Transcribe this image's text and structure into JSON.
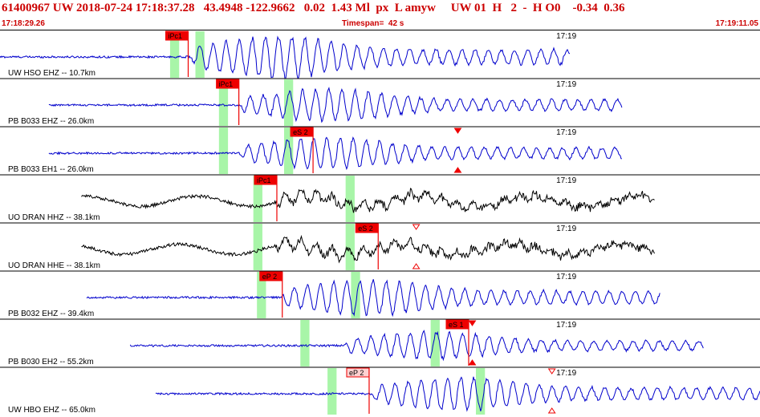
{
  "header": {
    "event_line": "61400967 UW 2018-07-24 17:18:37.28   43.4948 -122.9662   0.02  1.43 Ml  px  L amyw     UW 01  H   2  -  H O0    -0.34  0.36",
    "start_time": "17:18:29.26",
    "timespan": "Timespan=  42 s",
    "end_time": "17:19:11.05"
  },
  "colors": {
    "header_text": "#cc0000",
    "trace_blue": "#0000cc",
    "trace_black": "#000000",
    "pick_box": "#ee0000",
    "pick_box_outline": "#ee0000",
    "pick_box_weak": "#ffd0d0",
    "window_green": "#a8f5a8",
    "separator": "#000000"
  },
  "time_axis": {
    "start_seconds": 0,
    "end_seconds": 42,
    "tick_label": "17:19",
    "tick_seconds": 30.74
  },
  "channels": [
    {
      "label": "UW HSO EHZ -- 10.7km",
      "color": "blue",
      "start": 0.0,
      "end": 31.5,
      "onset": 10.5,
      "amp": 1.0,
      "picks": [
        {
          "label": "iPc1",
          "time": 10.4,
          "weak": false
        }
      ],
      "green": [
        [
          9.4,
          9.9
        ],
        [
          10.8,
          11.3
        ]
      ],
      "triangles": []
    },
    {
      "label": "PB B033 EHZ -- 26.0km",
      "color": "blue",
      "start": 2.7,
      "end": 34.4,
      "onset": 13.2,
      "amp": 0.75,
      "picks": [
        {
          "label": "iPc1",
          "time": 13.2,
          "weak": false
        }
      ],
      "green": [
        [
          12.1,
          12.6
        ],
        [
          15.7,
          16.2
        ]
      ],
      "triangles": []
    },
    {
      "label": "PB B033 EH1 -- 26.0km",
      "color": "blue",
      "start": 2.7,
      "end": 34.4,
      "onset": 13.2,
      "amp": 0.75,
      "picks": [
        {
          "label": "eS 2",
          "time": 17.3,
          "weak": false
        }
      ],
      "green": [
        [
          12.1,
          12.6
        ],
        [
          15.7,
          16.2
        ]
      ],
      "triangles": [
        {
          "time": 25.3,
          "pos": "top",
          "open": false
        },
        {
          "time": 25.3,
          "pos": "bottom",
          "open": false
        }
      ]
    },
    {
      "label": "UO DRAN HHZ -- 38.1km",
      "color": "black",
      "start": 4.5,
      "end": 36.2,
      "onset": 15.3,
      "amp": 0.7,
      "picks": [
        {
          "label": "iPc1",
          "time": 15.3,
          "weak": false
        }
      ],
      "green": [
        [
          14.0,
          14.5
        ],
        [
          19.1,
          19.6
        ]
      ],
      "triangles": []
    },
    {
      "label": "UO DRAN HHE -- 38.1km",
      "color": "black",
      "start": 4.5,
      "end": 36.2,
      "onset": 15.3,
      "amp": 0.7,
      "picks": [
        {
          "label": "eS 2",
          "time": 20.9,
          "weak": false
        }
      ],
      "green": [
        [
          14.0,
          14.5
        ],
        [
          19.1,
          19.6
        ]
      ],
      "triangles": [
        {
          "time": 23.0,
          "pos": "top",
          "open": true
        },
        {
          "time": 23.0,
          "pos": "bottom",
          "open": true
        }
      ]
    },
    {
      "label": "PB B032 EHZ -- 39.4km",
      "color": "blue",
      "start": 4.8,
      "end": 36.5,
      "onset": 15.5,
      "amp": 0.85,
      "picks": [
        {
          "label": "eP 2",
          "time": 15.6,
          "weak": false
        }
      ],
      "green": [
        [
          14.2,
          14.7
        ],
        [
          19.4,
          19.9
        ]
      ],
      "triangles": []
    },
    {
      "label": "PB B030 EH2 -- 55.2km",
      "color": "blue",
      "start": 7.2,
      "end": 38.9,
      "onset": 19.0,
      "amp": 0.65,
      "picks": [
        {
          "label": "eS 1",
          "time": 25.9,
          "weak": false
        }
      ],
      "green": [
        [
          16.6,
          17.1
        ],
        [
          23.8,
          24.3
        ]
      ],
      "triangles": [
        {
          "time": 26.1,
          "pos": "top",
          "open": false
        },
        {
          "time": 26.1,
          "pos": "bottom",
          "open": false
        }
      ]
    },
    {
      "label": "UW HBO EHZ -- 65.0km",
      "color": "blue",
      "start": 8.6,
      "end": 42.0,
      "onset": 20.5,
      "amp": 0.8,
      "picks": [
        {
          "label": "eP 2",
          "time": 20.4,
          "weak": true
        }
      ],
      "green": [
        [
          18.1,
          18.6
        ],
        [
          26.3,
          26.8
        ]
      ],
      "triangles": [
        {
          "time": 30.5,
          "pos": "top",
          "open": true
        },
        {
          "time": 30.5,
          "pos": "bottom",
          "open": true
        }
      ]
    }
  ]
}
